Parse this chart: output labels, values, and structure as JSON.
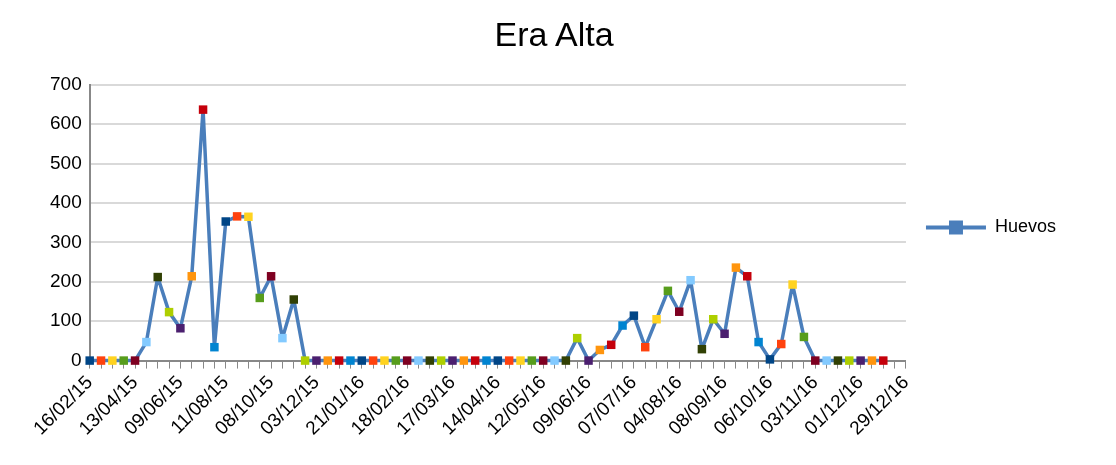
{
  "chart_data": {
    "type": "line",
    "title": "Era Alta",
    "categories": [
      "16/02/15",
      null,
      null,
      null,
      "13/04/15",
      null,
      null,
      null,
      "09/06/15",
      null,
      null,
      null,
      "11/08/15",
      null,
      null,
      null,
      "08/10/15",
      null,
      null,
      null,
      "03/12/15",
      null,
      null,
      null,
      "21/01/16",
      null,
      null,
      null,
      "18/02/16",
      null,
      null,
      null,
      "17/03/16",
      null,
      null,
      null,
      "14/04/16",
      null,
      null,
      null,
      "12/05/16",
      null,
      null,
      null,
      "09/06/16",
      null,
      null,
      null,
      "07/07/16",
      null,
      null,
      null,
      "04/08/16",
      null,
      null,
      null,
      "08/09/16",
      null,
      null,
      null,
      "06/10/16",
      null,
      null,
      null,
      "03/11/16",
      null,
      null,
      null,
      "01/12/16",
      null,
      null,
      null,
      "29/12/16"
    ],
    "series": [
      {
        "name": "Huevos",
        "color": "#4a7ebb",
        "values": [
          0,
          0,
          0,
          0,
          0,
          47,
          212,
          123,
          82,
          214,
          637,
          34,
          353,
          366,
          365,
          159,
          214,
          57,
          155,
          0,
          0,
          0,
          0,
          0,
          0,
          0,
          0,
          0,
          0,
          0,
          0,
          0,
          0,
          0,
          0,
          0,
          0,
          0,
          0,
          0,
          0,
          0,
          0,
          57,
          0,
          27,
          40,
          89,
          114,
          34,
          105,
          177,
          124,
          204,
          29,
          105,
          68,
          236,
          214,
          47,
          3,
          42,
          193,
          60,
          0,
          0,
          0,
          0,
          0,
          0,
          0,
          null,
          null
        ],
        "colors": [
          "#004586",
          "#ff420e",
          "#ffd320",
          "#579d1c",
          "#7e0021",
          "#83caff",
          "#314004",
          "#aecf00",
          "#4b1f6f",
          "#ff950e",
          "#c5000b",
          "#0084d1",
          "#004586",
          "#ff420e",
          "#ffd320",
          "#579d1c",
          "#7e0021",
          "#83caff",
          "#314004",
          "#aecf00",
          "#4b1f6f",
          "#ff950e",
          "#c5000b",
          "#0084d1",
          "#004586",
          "#ff420e",
          "#ffd320",
          "#579d1c",
          "#7e0021",
          "#83caff",
          "#314004",
          "#aecf00",
          "#4b1f6f",
          "#ff950e",
          "#c5000b",
          "#0084d1",
          "#004586",
          "#ff420e",
          "#ffd320",
          "#579d1c",
          "#7e0021",
          "#83caff",
          "#314004",
          "#aecf00",
          "#4b1f6f",
          "#ff950e",
          "#c5000b",
          "#0084d1",
          "#004586",
          "#ff420e",
          "#ffd320",
          "#579d1c",
          "#7e0021",
          "#83caff",
          "#314004",
          "#aecf00",
          "#4b1f6f",
          "#ff950e",
          "#c5000b",
          "#0084d1",
          "#004586",
          "#ff420e",
          "#ffd320",
          "#579d1c",
          "#7e0021",
          "#83caff",
          "#314004",
          "#aecf00",
          "#4b1f6f",
          "#ff950e",
          "#c5000b",
          "#0084d1",
          "#004586"
        ]
      }
    ],
    "ylim": [
      0,
      700
    ],
    "yticks": [
      0,
      100,
      200,
      300,
      400,
      500,
      600,
      700
    ],
    "grid": "y",
    "legend": "right",
    "marker": "square",
    "line_style": "solid"
  }
}
